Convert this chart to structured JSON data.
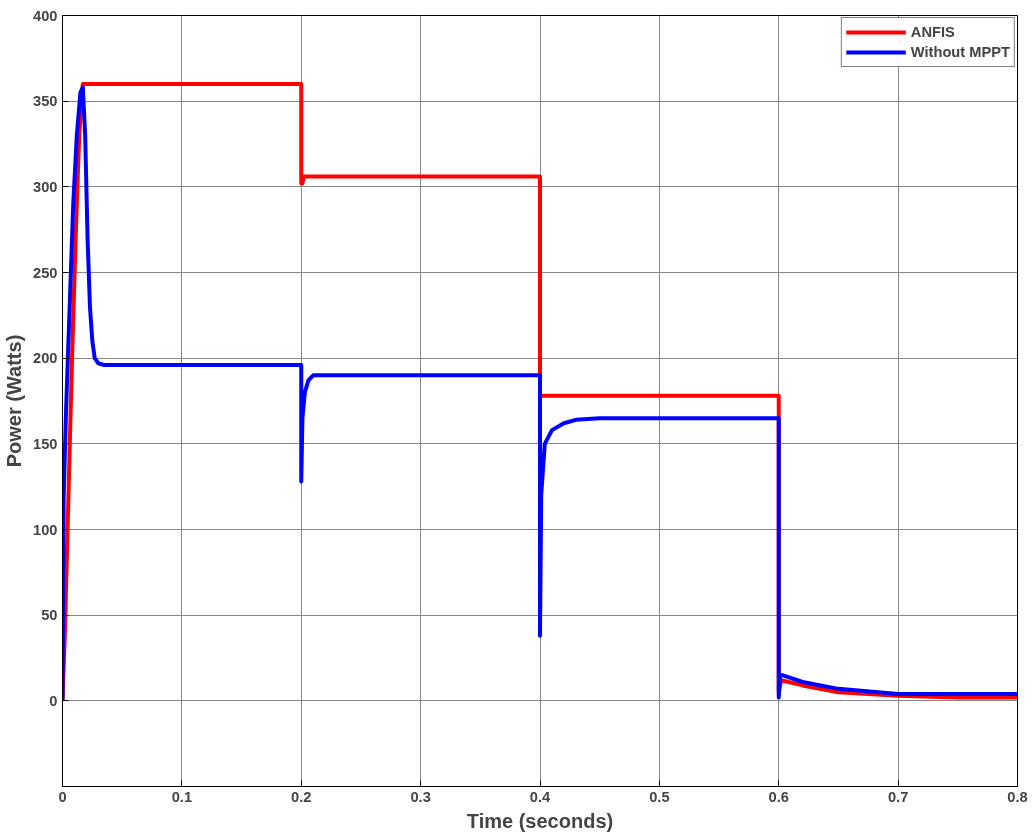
{
  "chart_data": {
    "type": "line",
    "xlabel": "Time (seconds)",
    "ylabel": "Power (Watts)",
    "xlim": [
      0,
      0.8
    ],
    "ylim": [
      -50,
      400
    ],
    "xticks": [
      0,
      0.1,
      0.2,
      0.3,
      0.4,
      0.5,
      0.6,
      0.7,
      0.8
    ],
    "yticks": [
      {
        "value": -50,
        "label": null
      },
      0,
      50,
      100,
      150,
      200,
      250,
      300,
      350,
      400
    ],
    "grid": true,
    "legend": "top right",
    "line_style": "solid",
    "marker": "none",
    "series": [
      {
        "name": "ANFIS",
        "color": "#ff0000",
        "x": [
          0,
          0.002,
          0.005,
          0.008,
          0.011,
          0.014,
          0.017,
          0.2,
          0.2,
          0.201,
          0.202,
          0.4,
          0.4,
          0.6,
          0.6,
          0.602,
          0.62,
          0.65,
          0.7,
          0.75,
          0.8
        ],
        "values": [
          0,
          40,
          120,
          200,
          270,
          330,
          360,
          360,
          302,
          302,
          306,
          306,
          178,
          178,
          5,
          12,
          9,
          5,
          3,
          2,
          2
        ]
      },
      {
        "name": "Without MPPT",
        "color": "#0000ff",
        "x": [
          0,
          0.001,
          0.003,
          0.006,
          0.009,
          0.012,
          0.015,
          0.017,
          0.019,
          0.021,
          0.023,
          0.025,
          0.027,
          0.03,
          0.035,
          0.2,
          0.2,
          0.201,
          0.203,
          0.206,
          0.21,
          0.4,
          0.4,
          0.401,
          0.404,
          0.41,
          0.42,
          0.43,
          0.45,
          0.6,
          0.6,
          0.601,
          0.603,
          0.62,
          0.65,
          0.7,
          0.8
        ],
        "values": [
          0,
          120,
          170,
          230,
          290,
          330,
          355,
          358,
          330,
          270,
          230,
          210,
          200,
          197,
          196,
          196,
          128,
          165,
          180,
          187,
          190,
          190,
          38,
          120,
          150,
          158,
          162,
          164,
          165,
          165,
          2,
          15,
          15,
          11,
          7,
          4,
          4
        ]
      }
    ]
  }
}
